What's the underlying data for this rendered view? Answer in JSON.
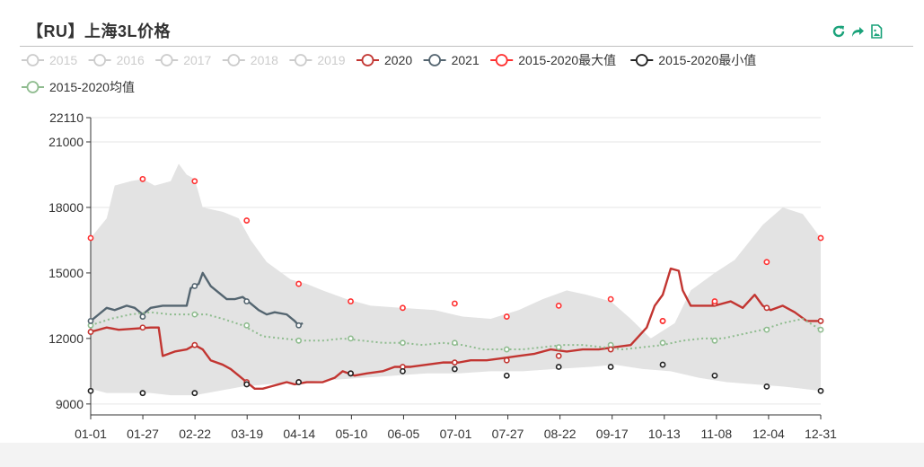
{
  "title": "【RU】上海3L价格",
  "toolbox": [
    {
      "name": "restore-icon",
      "color": "#1aa27a"
    },
    {
      "name": "share-icon",
      "color": "#1aa27a"
    },
    {
      "name": "save-image-icon",
      "color": "#1aa27a"
    }
  ],
  "chart_data": {
    "type": "line",
    "title": "【RU】上海3L价格",
    "x_ticks": [
      "01-01",
      "01-27",
      "02-22",
      "03-19",
      "04-14",
      "05-10",
      "06-05",
      "07-01",
      "07-27",
      "08-22",
      "09-17",
      "10-13",
      "11-08",
      "12-04",
      "12-31"
    ],
    "y_ticks": [
      9000,
      12000,
      15000,
      18000,
      21000,
      22110
    ],
    "ylim": [
      8500,
      22110
    ],
    "xlim_day": [
      0,
      365
    ],
    "grid": true,
    "legend_position": "top",
    "legend": [
      {
        "name": "2015",
        "color": "#cccccc",
        "enabled": false
      },
      {
        "name": "2016",
        "color": "#cccccc",
        "enabled": false
      },
      {
        "name": "2017",
        "color": "#cccccc",
        "enabled": false
      },
      {
        "name": "2018",
        "color": "#cccccc",
        "enabled": false
      },
      {
        "name": "2019",
        "color": "#cccccc",
        "enabled": false
      },
      {
        "name": "2020",
        "color": "#c23531",
        "enabled": true
      },
      {
        "name": "2021",
        "color": "#546570",
        "enabled": true
      },
      {
        "name": "2015-2020最大值",
        "color": "#ff3030",
        "enabled": true
      },
      {
        "name": "2015-2020最小值",
        "color": "#222222",
        "enabled": true
      },
      {
        "name": "2015-2020均值",
        "color": "#8fbc8f",
        "enabled": true
      }
    ],
    "band": {
      "upper": [
        [
          0,
          16600
        ],
        [
          8,
          17500
        ],
        [
          12,
          19000
        ],
        [
          20,
          19200
        ],
        [
          26,
          19300
        ],
        [
          32,
          19000
        ],
        [
          40,
          19200
        ],
        [
          44,
          20000
        ],
        [
          48,
          19500
        ],
        [
          52,
          19300
        ],
        [
          56,
          18000
        ],
        [
          66,
          17800
        ],
        [
          74,
          17500
        ],
        [
          80,
          16500
        ],
        [
          88,
          15500
        ],
        [
          100,
          14700
        ],
        [
          108,
          14500
        ],
        [
          116,
          14200
        ],
        [
          128,
          13800
        ],
        [
          140,
          13500
        ],
        [
          156,
          13400
        ],
        [
          172,
          13300
        ],
        [
          186,
          13000
        ],
        [
          200,
          12900
        ],
        [
          214,
          13300
        ],
        [
          226,
          13800
        ],
        [
          238,
          14200
        ],
        [
          248,
          14000
        ],
        [
          260,
          13700
        ],
        [
          270,
          12900
        ],
        [
          280,
          12000
        ],
        [
          292,
          12700
        ],
        [
          300,
          14200
        ],
        [
          312,
          15000
        ],
        [
          322,
          15600
        ],
        [
          336,
          17200
        ],
        [
          346,
          18000
        ],
        [
          356,
          17700
        ],
        [
          365,
          16600
        ]
      ],
      "lower": [
        [
          0,
          9700
        ],
        [
          8,
          9500
        ],
        [
          20,
          9500
        ],
        [
          30,
          9500
        ],
        [
          40,
          9400
        ],
        [
          52,
          9400
        ],
        [
          64,
          9600
        ],
        [
          76,
          9800
        ],
        [
          88,
          9900
        ],
        [
          104,
          10000
        ],
        [
          120,
          10100
        ],
        [
          136,
          10200
        ],
        [
          152,
          10300
        ],
        [
          168,
          10400
        ],
        [
          184,
          10400
        ],
        [
          200,
          10500
        ],
        [
          216,
          10500
        ],
        [
          232,
          10600
        ],
        [
          250,
          10700
        ],
        [
          262,
          10800
        ],
        [
          276,
          10600
        ],
        [
          290,
          10500
        ],
        [
          304,
          10200
        ],
        [
          318,
          10000
        ],
        [
          332,
          9900
        ],
        [
          346,
          9800
        ],
        [
          356,
          9700
        ],
        [
          365,
          9600
        ]
      ]
    },
    "series": [
      {
        "name": "2020",
        "color": "#c23531",
        "points": [
          [
            0,
            12300
          ],
          [
            4,
            12400
          ],
          [
            8,
            12500
          ],
          [
            14,
            12400
          ],
          [
            30,
            12500
          ],
          [
            34,
            12500
          ],
          [
            36,
            11200
          ],
          [
            42,
            11400
          ],
          [
            48,
            11500
          ],
          [
            52,
            11700
          ],
          [
            56,
            11500
          ],
          [
            60,
            11000
          ],
          [
            66,
            10800
          ],
          [
            70,
            10600
          ],
          [
            74,
            10300
          ],
          [
            78,
            10000
          ],
          [
            82,
            9700
          ],
          [
            86,
            9700
          ],
          [
            90,
            9800
          ],
          [
            94,
            9900
          ],
          [
            98,
            10000
          ],
          [
            102,
            9900
          ],
          [
            108,
            10000
          ],
          [
            116,
            10000
          ],
          [
            122,
            10200
          ],
          [
            126,
            10500
          ],
          [
            132,
            10300
          ],
          [
            138,
            10400
          ],
          [
            146,
            10500
          ],
          [
            152,
            10700
          ],
          [
            160,
            10700
          ],
          [
            168,
            10800
          ],
          [
            176,
            10900
          ],
          [
            184,
            10900
          ],
          [
            190,
            11000
          ],
          [
            198,
            11000
          ],
          [
            206,
            11100
          ],
          [
            214,
            11200
          ],
          [
            222,
            11300
          ],
          [
            230,
            11500
          ],
          [
            238,
            11400
          ],
          [
            246,
            11500
          ],
          [
            254,
            11500
          ],
          [
            262,
            11600
          ],
          [
            270,
            11700
          ],
          [
            278,
            12500
          ],
          [
            282,
            13500
          ],
          [
            286,
            14000
          ],
          [
            290,
            15200
          ],
          [
            294,
            15100
          ],
          [
            296,
            14200
          ],
          [
            300,
            13500
          ],
          [
            304,
            13500
          ],
          [
            312,
            13500
          ],
          [
            320,
            13700
          ],
          [
            326,
            13400
          ],
          [
            332,
            14000
          ],
          [
            336,
            13500
          ],
          [
            340,
            13300
          ],
          [
            346,
            13500
          ],
          [
            352,
            13200
          ],
          [
            358,
            12800
          ],
          [
            365,
            12800
          ]
        ]
      },
      {
        "name": "2021",
        "color": "#546570",
        "points": [
          [
            0,
            12800
          ],
          [
            4,
            13100
          ],
          [
            8,
            13400
          ],
          [
            12,
            13300
          ],
          [
            18,
            13500
          ],
          [
            22,
            13400
          ],
          [
            26,
            13100
          ],
          [
            30,
            13400
          ],
          [
            36,
            13500
          ],
          [
            48,
            13500
          ],
          [
            50,
            14300
          ],
          [
            54,
            14500
          ],
          [
            56,
            15000
          ],
          [
            60,
            14400
          ],
          [
            64,
            14100
          ],
          [
            68,
            13800
          ],
          [
            72,
            13800
          ],
          [
            76,
            13900
          ],
          [
            80,
            13600
          ],
          [
            84,
            13300
          ],
          [
            88,
            13100
          ],
          [
            92,
            13200
          ],
          [
            98,
            13100
          ],
          [
            102,
            12800
          ],
          [
            104,
            12600
          ],
          [
            106,
            12700
          ]
        ]
      },
      {
        "name": "2015-2020均值",
        "color": "#8fbc8f",
        "dashed": true,
        "points": [
          [
            0,
            12600
          ],
          [
            10,
            12900
          ],
          [
            20,
            13100
          ],
          [
            30,
            13200
          ],
          [
            40,
            13100
          ],
          [
            50,
            13100
          ],
          [
            58,
            13100
          ],
          [
            66,
            12900
          ],
          [
            76,
            12600
          ],
          [
            86,
            12100
          ],
          [
            96,
            12000
          ],
          [
            106,
            11900
          ],
          [
            116,
            11900
          ],
          [
            126,
            12000
          ],
          [
            136,
            11900
          ],
          [
            146,
            11800
          ],
          [
            156,
            11800
          ],
          [
            166,
            11700
          ],
          [
            176,
            11800
          ],
          [
            186,
            11700
          ],
          [
            196,
            11500
          ],
          [
            206,
            11500
          ],
          [
            216,
            11500
          ],
          [
            226,
            11600
          ],
          [
            236,
            11700
          ],
          [
            246,
            11700
          ],
          [
            256,
            11600
          ],
          [
            266,
            11500
          ],
          [
            276,
            11600
          ],
          [
            286,
            11700
          ],
          [
            296,
            11900
          ],
          [
            306,
            12000
          ],
          [
            316,
            12000
          ],
          [
            326,
            12200
          ],
          [
            336,
            12400
          ],
          [
            346,
            12700
          ],
          [
            356,
            12900
          ],
          [
            365,
            12400
          ]
        ]
      }
    ],
    "max_markers": [
      [
        0,
        16600
      ],
      [
        26,
        19300
      ],
      [
        52,
        19200
      ],
      [
        78,
        17400
      ],
      [
        104,
        14500
      ],
      [
        130,
        13700
      ],
      [
        156,
        13400
      ],
      [
        182,
        13600
      ],
      [
        208,
        13000
      ],
      [
        234,
        13500
      ],
      [
        260,
        13800
      ],
      [
        286,
        12800
      ],
      [
        312,
        13700
      ],
      [
        338,
        15500
      ],
      [
        365,
        16600
      ]
    ],
    "min_markers": [
      [
        0,
        9600
      ],
      [
        26,
        9500
      ],
      [
        52,
        9500
      ],
      [
        78,
        9900
      ],
      [
        104,
        10000
      ],
      [
        130,
        10400
      ],
      [
        156,
        10500
      ],
      [
        182,
        10600
      ],
      [
        208,
        10300
      ],
      [
        234,
        10700
      ],
      [
        260,
        10700
      ],
      [
        286,
        10800
      ],
      [
        312,
        10300
      ],
      [
        338,
        9800
      ],
      [
        365,
        9600
      ]
    ],
    "mean_markers": [
      [
        0,
        12600
      ],
      [
        26,
        13000
      ],
      [
        52,
        13100
      ],
      [
        78,
        12600
      ],
      [
        104,
        11900
      ],
      [
        130,
        12000
      ],
      [
        156,
        11800
      ],
      [
        182,
        11800
      ],
      [
        208,
        11500
      ],
      [
        234,
        11600
      ],
      [
        260,
        11700
      ],
      [
        286,
        11800
      ],
      [
        312,
        11900
      ],
      [
        338,
        12400
      ],
      [
        365,
        12400
      ]
    ],
    "s2020_markers": [
      [
        0,
        12300
      ],
      [
        26,
        12500
      ],
      [
        52,
        11700
      ],
      [
        78,
        10000
      ],
      [
        104,
        10000
      ],
      [
        130,
        10400
      ],
      [
        156,
        10700
      ],
      [
        182,
        10900
      ],
      [
        208,
        11000
      ],
      [
        234,
        11200
      ],
      [
        260,
        11500
      ],
      [
        286,
        12800
      ],
      [
        312,
        13600
      ],
      [
        338,
        13400
      ],
      [
        365,
        12800
      ]
    ],
    "s2021_markers": [
      [
        0,
        12800
      ],
      [
        26,
        13000
      ],
      [
        52,
        14400
      ],
      [
        78,
        13700
      ],
      [
        104,
        12600
      ]
    ]
  }
}
